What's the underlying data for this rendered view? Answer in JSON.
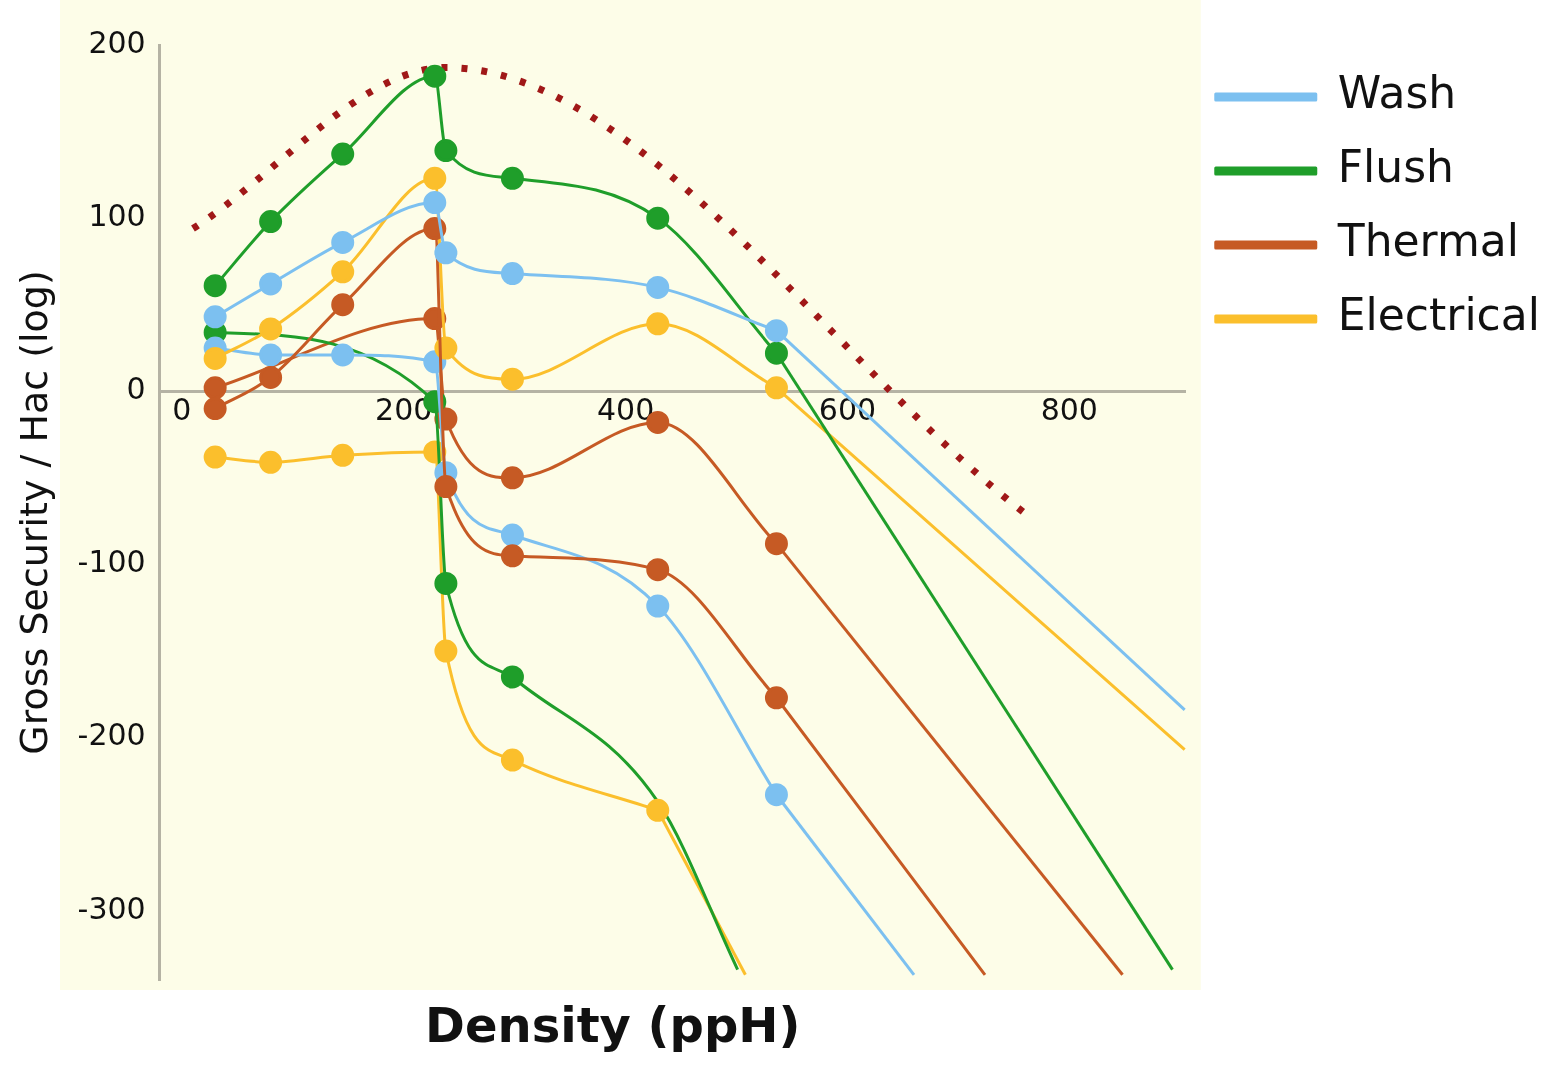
{
  "chart_data": {
    "type": "line",
    "xlabel": "Density (ppH)",
    "ylabel": "Gross Security / Hac (log)",
    "xlim": [
      -20,
      905
    ],
    "xticks": [
      0,
      200,
      400,
      600,
      800
    ],
    "ylim": [
      -340,
      200
    ],
    "yticks": [
      -300,
      -200,
      -100,
      0,
      100,
      200
    ],
    "grid": false,
    "legend": "right",
    "marker": "circle",
    "series": [
      {
        "name": "Wash",
        "color": "#7cc0f0",
        "x": [
          30,
          80,
          145,
          228,
          238,
          298,
          429,
          536
        ],
        "values": [
          43,
          62,
          86,
          109,
          80,
          68,
          60,
          35
        ]
      },
      {
        "name": "Flush",
        "color": "#1f9e2a",
        "x": [
          30,
          80,
          145,
          228,
          238,
          298,
          429,
          536
        ],
        "values": [
          61,
          98,
          137,
          182,
          139,
          123,
          100,
          22
        ]
      },
      {
        "name": "Thermal",
        "color": "#c65a24",
        "x": [
          30,
          80,
          145,
          228,
          238,
          298,
          429,
          536
        ],
        "values": [
          -10,
          8,
          50,
          94,
          -55,
          -95,
          -103,
          -177
        ]
      },
      {
        "name": "Electrical",
        "color": "#fbbf2c",
        "x": [
          30,
          80,
          145,
          228,
          238,
          298,
          429,
          536
        ],
        "values": [
          19,
          36,
          69,
          123,
          25,
          7,
          39,
          2
        ]
      },
      {
        "color": "#7cc0f0",
        "x": [
          30,
          80,
          145,
          228,
          238,
          298,
          429,
          536
        ],
        "values": [
          25,
          21,
          21,
          17,
          -47,
          -83,
          -124,
          -233
        ]
      },
      {
        "color": "#1f9e2a",
        "x": [
          30,
          228,
          238,
          298
        ],
        "values": [
          34,
          -6,
          -111,
          -165
        ]
      },
      {
        "color": "#c65a24",
        "x": [
          30,
          228,
          238,
          298,
          429,
          536
        ],
        "values": [
          2,
          42,
          -16,
          -50,
          -18,
          -88
        ]
      },
      {
        "color": "#fbbf2c",
        "x": [
          30,
          80,
          145,
          228,
          238,
          298,
          429
        ],
        "values": [
          -38,
          -41,
          -37,
          -35,
          -150,
          -213,
          -242
        ]
      },
      {
        "color": "#7cc0f0",
        "marker": "none",
        "x": [
          536,
          904
        ],
        "values": [
          35,
          -184
        ]
      },
      {
        "color": "#1f9e2a",
        "marker": "none",
        "x": [
          536,
          893
        ],
        "values": [
          22,
          -334
        ]
      },
      {
        "color": "#c65a24",
        "marker": "none",
        "x": [
          536,
          724
        ],
        "values": [
          -177,
          -337
        ]
      },
      {
        "color": "#fbbf2c",
        "marker": "none",
        "x": [
          536,
          904
        ],
        "values": [
          2,
          -207
        ]
      },
      {
        "color": "#7cc0f0",
        "marker": "none",
        "x": [
          536,
          660
        ],
        "values": [
          -233,
          -337
        ]
      },
      {
        "color": "#1f9e2a",
        "marker": "none",
        "x": [
          298,
          429,
          501
        ],
        "values": [
          -165,
          -237,
          -334
        ]
      },
      {
        "color": "#c65a24",
        "marker": "none",
        "x": [
          536,
          848
        ],
        "values": [
          -88,
          -337
        ]
      },
      {
        "color": "#fbbf2c",
        "marker": "none",
        "x": [
          429,
          508
        ],
        "values": [
          -242,
          -337
        ]
      },
      {
        "color": "#a01818",
        "marker": "none",
        "line_style": "dotted",
        "x": [
          10,
          238,
          761
        ],
        "values": [
          94,
          187,
          -71
        ]
      }
    ]
  }
}
